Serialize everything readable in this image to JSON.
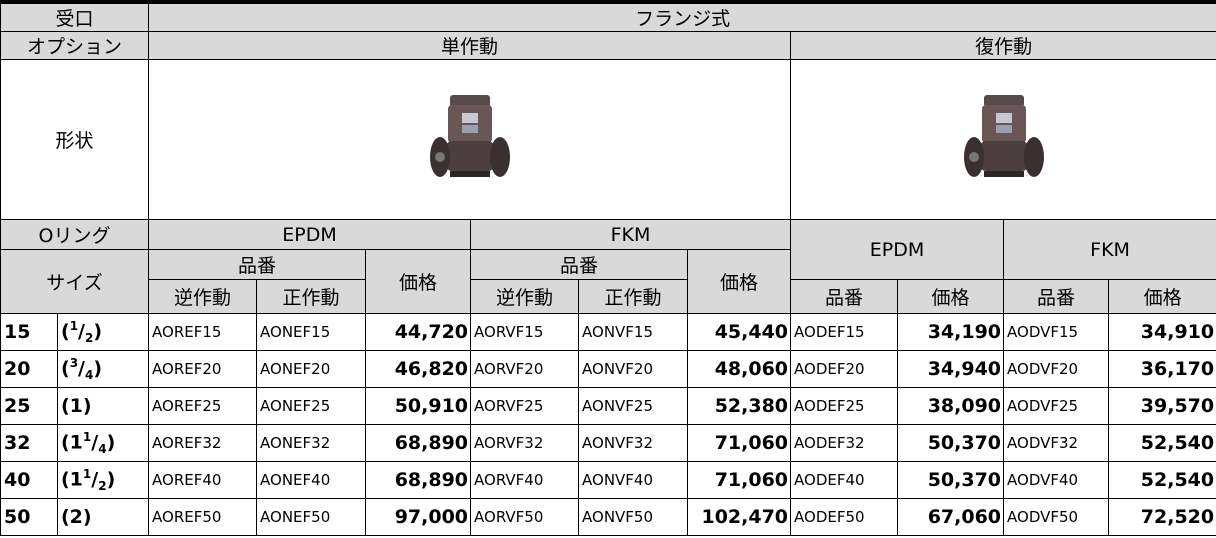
{
  "header": {
    "inlet": "受口",
    "connection": "フランジ式",
    "option": "オプション",
    "single_acting": "単作動",
    "double_acting": "復作動",
    "shape": "形状",
    "oring": "Oリング",
    "size": "サイズ",
    "epdm": "EPDM",
    "fkm": "FKM",
    "part_no": "品番",
    "price": "価格",
    "reverse_acting": "逆作動",
    "direct_acting": "正作動"
  },
  "rows": [
    {
      "size": "15",
      "fraction": {
        "open": "(",
        "num": "1",
        "sep": "/",
        "den": "2",
        "close": ")"
      },
      "cells": [
        "AOREF15",
        "AONEF15",
        "44,720",
        "AORVF15",
        "AONVF15",
        "45,440",
        "AODEF15",
        "34,190",
        "AODVF15",
        "34,910"
      ]
    },
    {
      "size": "20",
      "fraction": {
        "open": "(",
        "num": "3",
        "sep": "/",
        "den": "4",
        "close": ")"
      },
      "cells": [
        "AOREF20",
        "AONEF20",
        "46,820",
        "AORVF20",
        "AONVF20",
        "48,060",
        "AODEF20",
        "34,940",
        "AODVF20",
        "36,170"
      ]
    },
    {
      "size": "25",
      "fraction": {
        "open": "(1)"
      },
      "cells": [
        "AOREF25",
        "AONEF25",
        "50,910",
        "AORVF25",
        "AONVF25",
        "52,380",
        "AODEF25",
        "38,090",
        "AODVF25",
        "39,570"
      ]
    },
    {
      "size": "32",
      "fraction": {
        "open": "(1",
        "num": "1",
        "sep": "/",
        "den": "4",
        "close": ")"
      },
      "cells": [
        "AOREF32",
        "AONEF32",
        "68,890",
        "AORVF32",
        "AONVF32",
        "71,060",
        "AODEF32",
        "50,370",
        "AODVF32",
        "52,540"
      ]
    },
    {
      "size": "40",
      "fraction": {
        "open": "(1",
        "num": "1",
        "sep": "/",
        "den": "2",
        "close": ")"
      },
      "cells": [
        "AOREF40",
        "AONEF40",
        "68,890",
        "AORVF40",
        "AONVF40",
        "71,060",
        "AODEF40",
        "50,370",
        "AODVF40",
        "52,540"
      ]
    },
    {
      "size": "50",
      "fraction": {
        "open": "(2)"
      },
      "cells": [
        "AOREF50",
        "AONEF50",
        "97,000",
        "AORVF50",
        "AONVF50",
        "102,470",
        "AODEF50",
        "67,060",
        "AODVF50",
        "72,520"
      ]
    }
  ]
}
